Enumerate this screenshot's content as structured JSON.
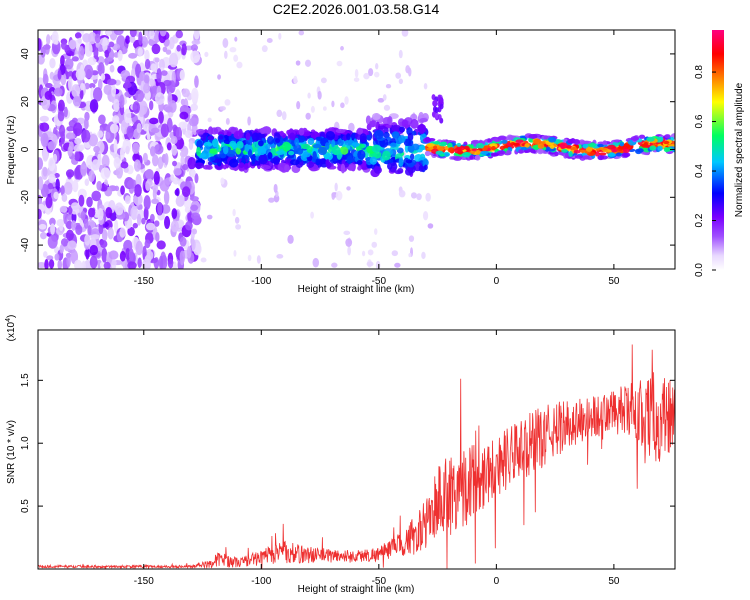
{
  "title": "C2E2.2026.001.03.58.G14",
  "chart_data": [
    {
      "type": "heatmap",
      "xlabel": "Height of straight line (km)",
      "ylabel": "Frequency (Hz)",
      "xlim": [
        -195,
        76
      ],
      "ylim": [
        -50,
        50
      ],
      "xticks": [
        -150,
        -100,
        -50,
        0,
        50
      ],
      "yticks": [
        -40,
        -20,
        0,
        20,
        40
      ],
      "colorbar": {
        "label": "Normalized spectral amplitude",
        "range": [
          0,
          0.97
        ],
        "ticks": [
          0.0,
          0.2,
          0.4,
          0.6,
          0.8
        ],
        "colormap": [
          "#ffffff",
          "#e8d8ff",
          "#7a00ff",
          "#0000ff",
          "#00c8ff",
          "#00ff60",
          "#ffff00",
          "#ff8000",
          "#ff0000",
          "#ff0080"
        ]
      },
      "regions": [
        {
          "x": [
            -195,
            -127
          ],
          "y": [
            -50,
            50
          ],
          "amplitude": "0.0-0.15 (noise)"
        },
        {
          "x": [
            -127,
            -30
          ],
          "center_frequency_hz": 0,
          "bandwidth_hz": 16,
          "amplitude": "0.2-0.5"
        },
        {
          "x": [
            -30,
            76
          ],
          "center_frequency_hz": [
            1,
            3
          ],
          "bandwidth_hz": 6,
          "amplitude": "0.7-0.95"
        }
      ]
    },
    {
      "type": "line",
      "xlabel": "Height of straight line (km)",
      "ylabel": "SNR (10 * v/v)",
      "y_scale_note": "(x10⁴)",
      "xlim": [
        -195,
        76
      ],
      "ylim": [
        0,
        1.9
      ],
      "xticks": [
        -150,
        -100,
        -50,
        0,
        50
      ],
      "yticks": [
        0.5,
        1.0,
        1.5
      ],
      "ytick_labels": [
        "0.5",
        "1.0",
        "1.5"
      ],
      "color": "#ee3030",
      "series": [
        {
          "name": "",
          "envelope": {
            "x": [
              -195,
              -130,
              -122,
              -118,
              -110,
              -100,
              -92,
              -85,
              -75,
              -60,
              -50,
              -40,
              -30,
              -25,
              -20,
              -15,
              -10,
              0,
              10,
              20,
              30,
              40,
              50,
              60,
              70,
              76
            ],
            "mean": [
              0.02,
              0.02,
              0.04,
              0.08,
              0.05,
              0.09,
              0.14,
              0.12,
              0.11,
              0.1,
              0.12,
              0.2,
              0.35,
              0.55,
              0.6,
              0.65,
              0.7,
              0.82,
              0.95,
              1.05,
              1.15,
              1.2,
              1.25,
              1.25,
              1.2,
              1.2
            ],
            "spread": [
              0.01,
              0.01,
              0.03,
              0.06,
              0.04,
              0.06,
              0.1,
              0.08,
              0.06,
              0.05,
              0.06,
              0.1,
              0.2,
              0.3,
              0.35,
              0.35,
              0.3,
              0.25,
              0.25,
              0.25,
              0.2,
              0.18,
              0.18,
              0.25,
              0.4,
              0.35
            ]
          }
        }
      ]
    }
  ]
}
